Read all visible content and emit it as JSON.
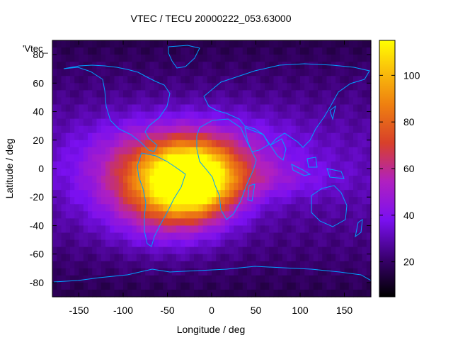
{
  "chart_data": {
    "type": "heatmap",
    "title": "VTEC / TECU 20000222_053.63000",
    "xlabel": "Longitude / deg",
    "ylabel": "Latitude / deg",
    "xlim": [
      -180,
      180
    ],
    "ylim": [
      -90,
      90
    ],
    "x_ticks": [
      -150,
      -100,
      -50,
      0,
      50,
      100,
      150
    ],
    "y_ticks": [
      -80,
      -60,
      -40,
      -20,
      0,
      20,
      40,
      60,
      80
    ],
    "legend_entry": "'Vtec_",
    "colorbar": {
      "range": [
        5,
        115
      ],
      "ticks": [
        20,
        40,
        60,
        80,
        100
      ],
      "colormap": "black-purple-red-orange-yellow (gnuplot)"
    },
    "field_peaks": [
      {
        "lon": -22,
        "lat": -8,
        "vtec": 115,
        "lon_spread": 32,
        "lat_spread": 16
      },
      {
        "lon": -45,
        "lat": -18,
        "vtec": 90,
        "lon_spread": 50,
        "lat_spread": 22
      },
      {
        "lon": -10,
        "lat": 8,
        "vtec": 60,
        "lon_spread": 70,
        "lat_spread": 20
      },
      {
        "lon": -100,
        "lat": 5,
        "vtec": 40,
        "lon_spread": 45,
        "lat_spread": 20
      },
      {
        "lon": 75,
        "lat": -8,
        "vtec": 40,
        "lon_spread": 45,
        "lat_spread": 8
      },
      {
        "lon": 10,
        "lat": -30,
        "vtec": 25,
        "lon_spread": 60,
        "lat_spread": 18
      }
    ],
    "background_vtec": 30,
    "coastline_color": "#00a0ff"
  }
}
